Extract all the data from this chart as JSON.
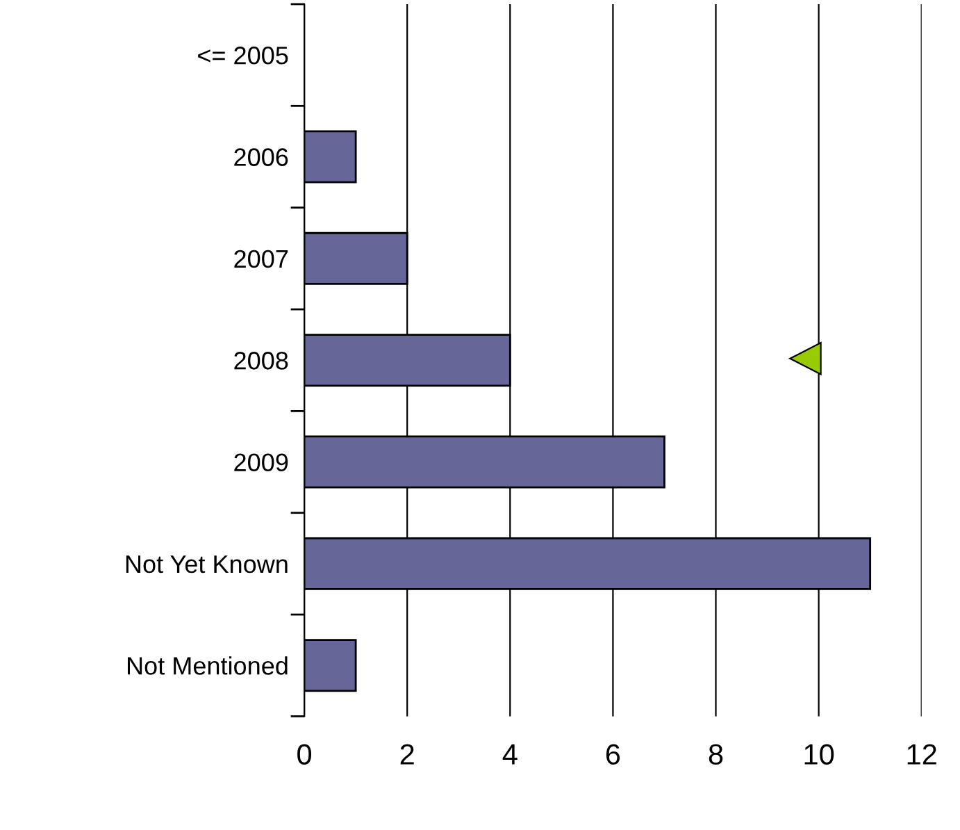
{
  "chart_data": {
    "type": "bar",
    "orientation": "horizontal",
    "categories": [
      "<= 2005",
      "2006",
      "2007",
      "2008",
      "2009",
      "Not Yet Known",
      "Not Mentioned"
    ],
    "values": [
      0,
      1,
      2,
      4,
      7,
      11,
      1
    ],
    "color": "#666699",
    "xlim": [
      0,
      12
    ],
    "xticks": [
      0,
      2,
      4,
      6,
      8,
      10,
      12
    ],
    "grid": "x",
    "legend": false
  }
}
